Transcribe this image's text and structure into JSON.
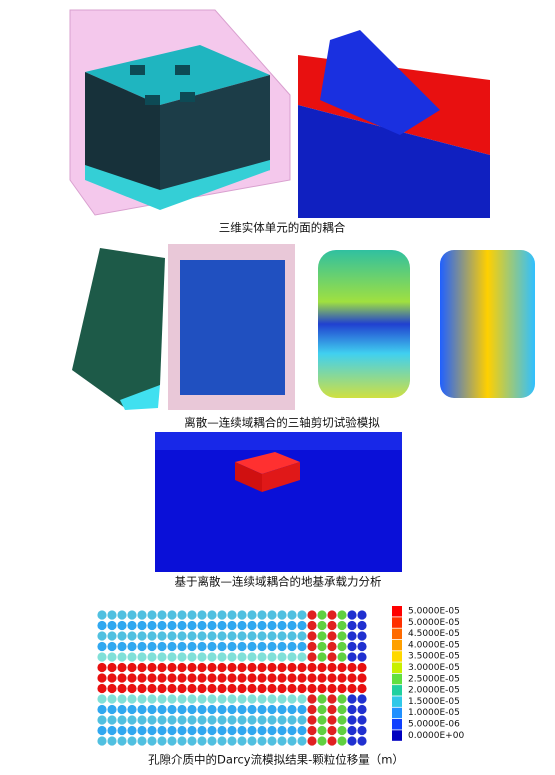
{
  "figures": [
    {
      "caption": "三维实体单元的面的耦合"
    },
    {
      "caption": "离散—连续域耦合的三轴剪切试验模拟"
    },
    {
      "caption": "基于离散—连续域耦合的地基承载力分析"
    },
    {
      "caption": "孔隙介质中的Darcy流模拟结果-颗粒位移量（m）"
    }
  ],
  "legend": {
    "labels": [
      "5.0000E-05",
      "5.0000E-05",
      "4.5000E-05",
      "4.0000E-05",
      "3.5000E-05",
      "3.0000E-05",
      "2.5000E-05",
      "2.0000E-05",
      "1.5000E-05",
      "1.0000E-05",
      "5.0000E-06",
      "0.0000E+00"
    ]
  }
}
